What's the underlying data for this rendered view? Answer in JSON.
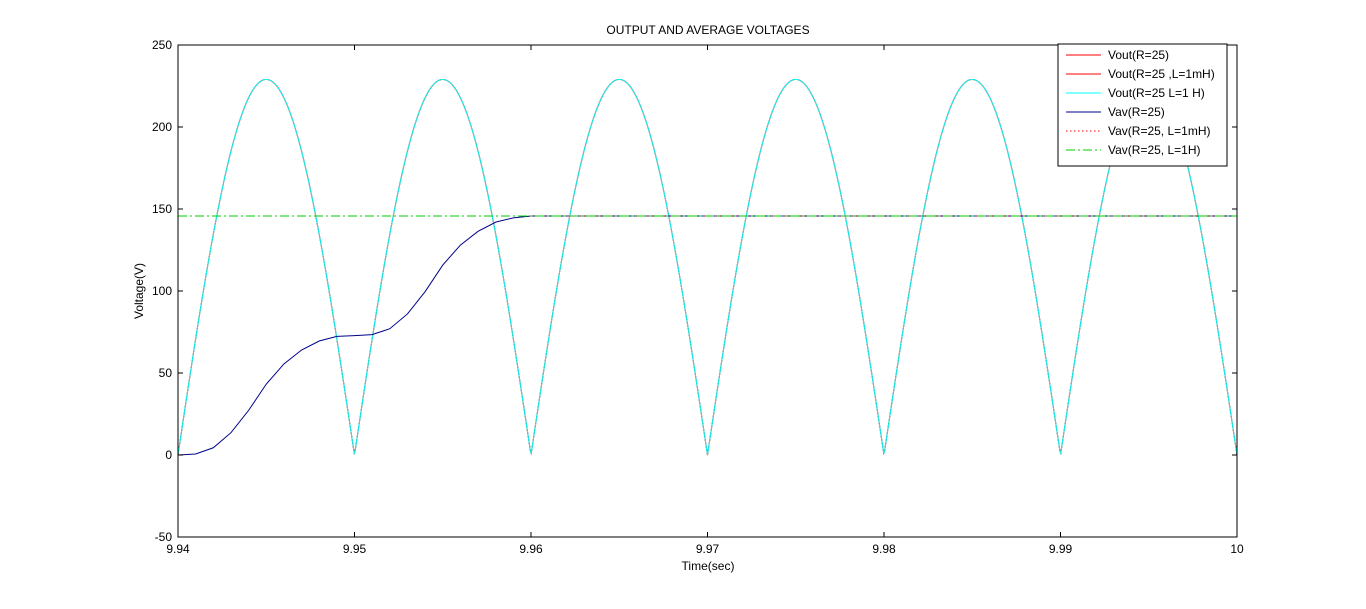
{
  "chart_data": {
    "type": "line",
    "title": "OUTPUT AND AVERAGE VOLTAGES",
    "xlabel": "Time(sec)",
    "ylabel": "Voltage(V)",
    "xlim": [
      9.94,
      10
    ],
    "ylim": [
      -50,
      250
    ],
    "x_ticks": [
      "9.94",
      "9.95",
      "9.96",
      "9.97",
      "9.98",
      "9.99",
      "10"
    ],
    "y_ticks": [
      "-50",
      "0",
      "50",
      "100",
      "150",
      "200",
      "250"
    ],
    "grid": false,
    "legend_position": "top-right",
    "series": [
      {
        "name": "Vout(R=25)",
        "color": "#ff0000",
        "style": "solid",
        "kind": "rectified-sine",
        "amplitude": 229,
        "period": 0.01,
        "phase_zero": 9.94
      },
      {
        "name": "Vout(R=25 ,L=1mH)",
        "color": "#ff0000",
        "style": "solid",
        "kind": "rectified-sine",
        "amplitude": 229,
        "period": 0.01,
        "phase_zero": 9.94
      },
      {
        "name": "Vout(R=25 L=1 H)",
        "color": "#00ffff",
        "style": "solid",
        "kind": "rectified-sine",
        "amplitude": 229,
        "period": 0.01,
        "phase_zero": 9.94
      },
      {
        "name": "Vav(R=25)",
        "color": "#00008b",
        "style": "solid",
        "x": [
          9.94,
          9.941,
          9.942,
          9.943,
          9.944,
          9.945,
          9.946,
          9.947,
          9.948,
          9.949,
          9.95,
          9.951,
          9.952,
          9.953,
          9.954,
          9.955,
          9.956,
          9.957,
          9.958,
          9.959,
          9.96,
          10
        ],
        "y": [
          0,
          0.6,
          4.4,
          13.6,
          27.2,
          43.2,
          55.5,
          64,
          69.5,
          72.3,
          72.8,
          73.4,
          77,
          86,
          99.6,
          115.8,
          128,
          136.4,
          142,
          144.6,
          145.7,
          145.7
        ]
      },
      {
        "name": "Vav(R=25, L=1mH)",
        "color": "#ff0000",
        "style": "dotted",
        "x": [
          9.96,
          10
        ],
        "y": [
          145.7,
          145.7
        ]
      },
      {
        "name": "Vav(R=25, L=1H)",
        "color": "#00cc00",
        "style": "dashdot",
        "x": [
          9.94,
          10
        ],
        "y": [
          145.7,
          145.7
        ]
      }
    ]
  }
}
